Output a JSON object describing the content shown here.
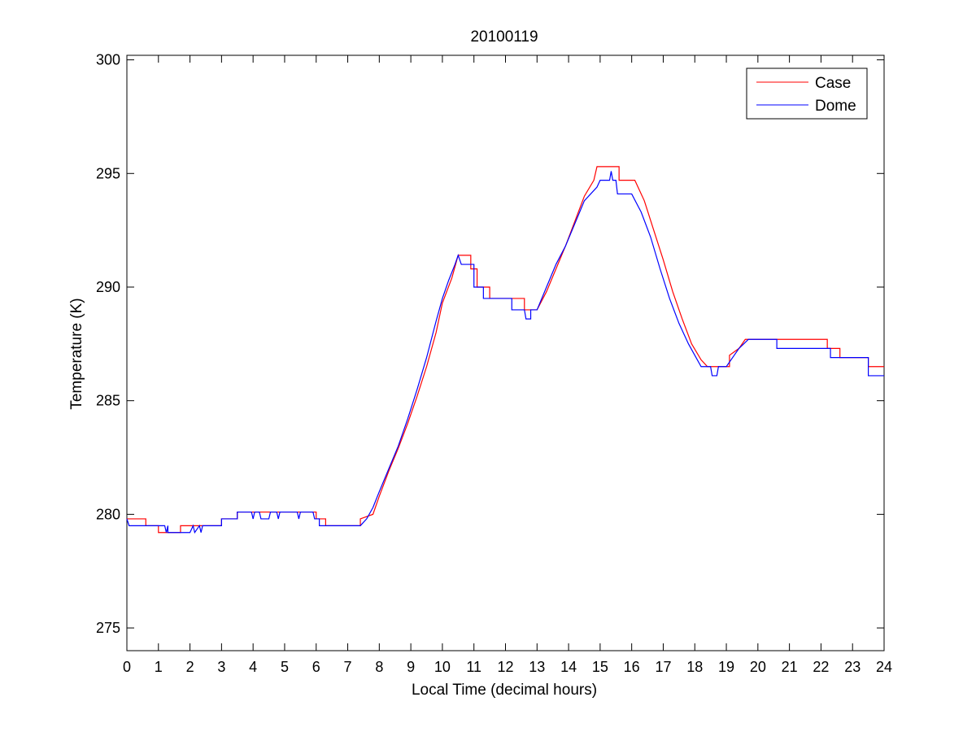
{
  "chart_data": {
    "type": "line",
    "title": "20100119",
    "xlabel": "Local Time (decimal hours)",
    "ylabel": "Temperature (K)",
    "xlim": [
      0,
      24
    ],
    "ylim": [
      274,
      300.2
    ],
    "xticks": [
      0,
      1,
      2,
      3,
      4,
      5,
      6,
      7,
      8,
      9,
      10,
      11,
      12,
      13,
      14,
      15,
      16,
      17,
      18,
      19,
      20,
      21,
      22,
      23,
      24
    ],
    "yticks": [
      275,
      280,
      285,
      290,
      295,
      300
    ],
    "grid": false,
    "legend": "top-right",
    "series": [
      {
        "name": "Case",
        "color": "#ff0000",
        "points": [
          [
            0,
            279.8
          ],
          [
            0.6,
            279.8
          ],
          [
            0.6,
            279.5
          ],
          [
            1.0,
            279.5
          ],
          [
            1.0,
            279.2
          ],
          [
            1.7,
            279.2
          ],
          [
            1.7,
            279.5
          ],
          [
            3.0,
            279.5
          ],
          [
            3.0,
            279.8
          ],
          [
            3.5,
            279.8
          ],
          [
            3.5,
            280.1
          ],
          [
            6.0,
            280.1
          ],
          [
            6.0,
            279.8
          ],
          [
            6.3,
            279.8
          ],
          [
            6.3,
            279.5
          ],
          [
            7.4,
            279.5
          ],
          [
            7.4,
            279.8
          ],
          [
            7.8,
            280.0
          ],
          [
            8.0,
            280.8
          ],
          [
            8.3,
            281.9
          ],
          [
            8.6,
            282.9
          ],
          [
            8.9,
            284.0
          ],
          [
            9.2,
            285.2
          ],
          [
            9.5,
            286.5
          ],
          [
            9.8,
            288.0
          ],
          [
            10.0,
            289.3
          ],
          [
            10.3,
            290.4
          ],
          [
            10.5,
            291.4
          ],
          [
            10.9,
            291.4
          ],
          [
            10.9,
            290.8
          ],
          [
            11.1,
            290.8
          ],
          [
            11.1,
            290.0
          ],
          [
            11.5,
            290.0
          ],
          [
            11.5,
            289.5
          ],
          [
            12.6,
            289.5
          ],
          [
            12.6,
            289.0
          ],
          [
            13.0,
            289.0
          ],
          [
            13.3,
            289.8
          ],
          [
            13.6,
            290.8
          ],
          [
            13.9,
            291.8
          ],
          [
            14.2,
            292.9
          ],
          [
            14.5,
            294.0
          ],
          [
            14.8,
            294.7
          ],
          [
            14.9,
            295.3
          ],
          [
            15.6,
            295.3
          ],
          [
            15.6,
            294.7
          ],
          [
            16.1,
            294.7
          ],
          [
            16.4,
            293.8
          ],
          [
            16.7,
            292.5
          ],
          [
            17.0,
            291.2
          ],
          [
            17.3,
            289.8
          ],
          [
            17.6,
            288.6
          ],
          [
            17.9,
            287.5
          ],
          [
            18.2,
            286.8
          ],
          [
            18.4,
            286.5
          ],
          [
            19.1,
            286.5
          ],
          [
            19.1,
            287.0
          ],
          [
            19.4,
            287.3
          ],
          [
            19.6,
            287.7
          ],
          [
            22.2,
            287.7
          ],
          [
            22.2,
            287.3
          ],
          [
            22.6,
            287.3
          ],
          [
            22.6,
            286.9
          ],
          [
            23.5,
            286.9
          ],
          [
            23.5,
            286.5
          ],
          [
            24.0,
            286.5
          ]
        ]
      },
      {
        "name": "Dome",
        "color": "#0000ff",
        "points": [
          [
            0,
            279.8
          ],
          [
            0.07,
            279.5
          ],
          [
            0.3,
            279.5
          ],
          [
            1.2,
            279.5
          ],
          [
            1.25,
            279.2
          ],
          [
            1.3,
            279.5
          ],
          [
            1.3,
            279.2
          ],
          [
            2.0,
            279.2
          ],
          [
            2.1,
            279.5
          ],
          [
            2.15,
            279.2
          ],
          [
            2.3,
            279.5
          ],
          [
            2.35,
            279.2
          ],
          [
            2.4,
            279.5
          ],
          [
            3.0,
            279.5
          ],
          [
            3.0,
            279.8
          ],
          [
            3.5,
            279.8
          ],
          [
            3.5,
            280.1
          ],
          [
            3.95,
            280.1
          ],
          [
            4.0,
            279.8
          ],
          [
            4.05,
            280.1
          ],
          [
            4.2,
            280.1
          ],
          [
            4.25,
            279.8
          ],
          [
            4.5,
            279.8
          ],
          [
            4.55,
            280.1
          ],
          [
            4.75,
            280.1
          ],
          [
            4.8,
            279.8
          ],
          [
            4.85,
            280.1
          ],
          [
            5.4,
            280.1
          ],
          [
            5.45,
            279.8
          ],
          [
            5.5,
            280.1
          ],
          [
            5.9,
            280.1
          ],
          [
            5.95,
            279.8
          ],
          [
            6.1,
            279.8
          ],
          [
            6.1,
            279.5
          ],
          [
            7.4,
            279.5
          ],
          [
            7.6,
            279.8
          ],
          [
            7.8,
            280.3
          ],
          [
            8.0,
            281.0
          ],
          [
            8.3,
            282.0
          ],
          [
            8.6,
            283.0
          ],
          [
            8.9,
            284.2
          ],
          [
            9.2,
            285.5
          ],
          [
            9.5,
            286.9
          ],
          [
            9.8,
            288.5
          ],
          [
            10.0,
            289.5
          ],
          [
            10.2,
            290.3
          ],
          [
            10.4,
            291.0
          ],
          [
            10.5,
            291.4
          ],
          [
            10.6,
            291.0
          ],
          [
            11.0,
            291.0
          ],
          [
            11.0,
            290.0
          ],
          [
            11.3,
            290.0
          ],
          [
            11.3,
            289.5
          ],
          [
            12.2,
            289.5
          ],
          [
            12.2,
            289.0
          ],
          [
            12.6,
            289.0
          ],
          [
            12.65,
            288.6
          ],
          [
            12.8,
            288.6
          ],
          [
            12.8,
            289.0
          ],
          [
            13.0,
            289.0
          ],
          [
            13.3,
            290.0
          ],
          [
            13.6,
            291.0
          ],
          [
            13.9,
            291.8
          ],
          [
            14.2,
            292.8
          ],
          [
            14.5,
            293.8
          ],
          [
            14.7,
            294.1
          ],
          [
            14.9,
            294.4
          ],
          [
            15.0,
            294.7
          ],
          [
            15.3,
            294.7
          ],
          [
            15.35,
            295.1
          ],
          [
            15.4,
            294.7
          ],
          [
            15.5,
            294.7
          ],
          [
            15.55,
            294.1
          ],
          [
            16.0,
            294.1
          ],
          [
            16.3,
            293.3
          ],
          [
            16.6,
            292.2
          ],
          [
            16.9,
            290.8
          ],
          [
            17.2,
            289.5
          ],
          [
            17.5,
            288.4
          ],
          [
            17.8,
            287.5
          ],
          [
            18.0,
            287.0
          ],
          [
            18.2,
            286.5
          ],
          [
            18.5,
            286.5
          ],
          [
            18.55,
            286.1
          ],
          [
            18.7,
            286.1
          ],
          [
            18.75,
            286.5
          ],
          [
            19.0,
            286.5
          ],
          [
            19.2,
            286.9
          ],
          [
            19.4,
            287.3
          ],
          [
            19.7,
            287.7
          ],
          [
            20.6,
            287.7
          ],
          [
            20.6,
            287.3
          ],
          [
            22.3,
            287.3
          ],
          [
            22.3,
            286.9
          ],
          [
            23.5,
            286.9
          ],
          [
            23.5,
            286.1
          ],
          [
            24.0,
            286.1
          ]
        ]
      }
    ]
  }
}
